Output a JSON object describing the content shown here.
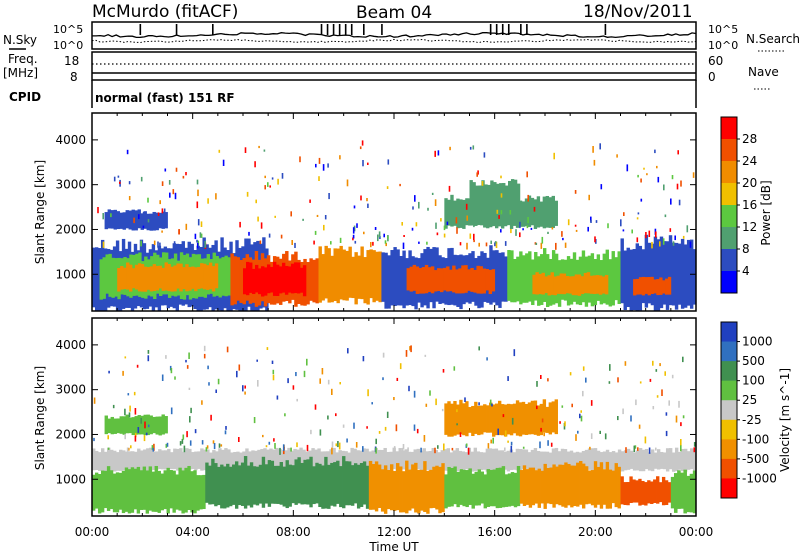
{
  "header": {
    "station": "McMurdo (fitACF)",
    "beam": "Beam 04",
    "date": "18/Nov/2011"
  },
  "panels": {
    "noise": {
      "left_label": "N.Sky",
      "right_label": "N.Search",
      "left_ticks": [
        "10^5",
        "10^0"
      ],
      "right_ticks": [
        "10^5",
        "10^0"
      ]
    },
    "freq": {
      "left_label_line1": "Freq.",
      "left_label_line2": "[MHz]",
      "right_label": "Nave",
      "left_ticks": [
        "18",
        "8"
      ],
      "right_ticks": [
        "60",
        "0"
      ]
    },
    "cpid": {
      "label": "CPID",
      "text": "normal (fast) 151 RF"
    }
  },
  "chart_data": [
    {
      "type": "heatmap",
      "title": "Power",
      "xlabel": "Time UT",
      "ylabel": "Slant Range [km]",
      "x_ticks": [
        "00:00",
        "04:00",
        "08:00",
        "12:00",
        "16:00",
        "20:00",
        "00:00"
      ],
      "xlim_hours": [
        0,
        24
      ],
      "ylim": [
        180,
        4600
      ],
      "y_ticks": [
        1000,
        2000,
        3000,
        4000
      ],
      "colorbar": {
        "label": "Power [dB]",
        "ticks": [
          "4",
          "8",
          "12",
          "16",
          "20",
          "24",
          "28"
        ],
        "levels": [
          {
            "from": 0,
            "to": 4,
            "color": "#0000ff"
          },
          {
            "from": 4,
            "to": 8,
            "color": "#2c4cc0"
          },
          {
            "from": 8,
            "to": 12,
            "color": "#50a070"
          },
          {
            "from": 12,
            "to": 16,
            "color": "#5cc840"
          },
          {
            "from": 16,
            "to": 20,
            "color": "#f0c000"
          },
          {
            "from": 20,
            "to": 24,
            "color": "#f08c00"
          },
          {
            "from": 24,
            "to": 28,
            "color": "#f05000"
          },
          {
            "from": 28,
            "to": 32,
            "color": "#ff0000"
          }
        ]
      },
      "bands": [
        {
          "start": 0.0,
          "end": 7.0,
          "low": 220,
          "high": 1650,
          "power": 7
        },
        {
          "start": 0.3,
          "end": 5.5,
          "low": 500,
          "high": 1400,
          "power": 14
        },
        {
          "start": 1.0,
          "end": 5.0,
          "low": 650,
          "high": 1200,
          "power": 22
        },
        {
          "start": 5.5,
          "end": 9.0,
          "low": 350,
          "high": 1400,
          "power": 27
        },
        {
          "start": 6.0,
          "end": 8.5,
          "low": 550,
          "high": 1200,
          "power": 30
        },
        {
          "start": 9.0,
          "end": 11.5,
          "low": 400,
          "high": 1500,
          "power": 22
        },
        {
          "start": 11.5,
          "end": 16.5,
          "low": 300,
          "high": 1500,
          "power": 7
        },
        {
          "start": 12.5,
          "end": 16.0,
          "low": 600,
          "high": 1150,
          "power": 25
        },
        {
          "start": 16.5,
          "end": 21.0,
          "low": 350,
          "high": 1450,
          "power": 14
        },
        {
          "start": 17.5,
          "end": 20.5,
          "low": 550,
          "high": 1000,
          "power": 22
        },
        {
          "start": 21.0,
          "end": 24.0,
          "low": 250,
          "high": 1700,
          "power": 7
        },
        {
          "start": 21.5,
          "end": 23.0,
          "low": 550,
          "high": 900,
          "power": 26
        },
        {
          "start": 14.0,
          "end": 18.5,
          "low": 2050,
          "high": 2700,
          "power": 9
        },
        {
          "start": 15.0,
          "end": 17.0,
          "low": 2400,
          "high": 3050,
          "power": 8
        },
        {
          "start": 0.5,
          "end": 3.0,
          "low": 2000,
          "high": 2400,
          "power": 6
        }
      ]
    },
    {
      "type": "heatmap",
      "title": "Velocity",
      "xlabel": "Time UT",
      "ylabel": "Slant Range [km]",
      "x_ticks": [
        "00:00",
        "04:00",
        "08:00",
        "12:00",
        "16:00",
        "20:00",
        "00:00"
      ],
      "xlim_hours": [
        0,
        24
      ],
      "ylim": [
        180,
        4600
      ],
      "y_ticks": [
        1000,
        2000,
        3000,
        4000
      ],
      "colorbar": {
        "label": "Velocity [m s^-1]",
        "ticks": [
          "1000",
          "500",
          "100",
          "25",
          "-25",
          "-100",
          "-500",
          "-1000"
        ],
        "levels": [
          {
            "from": 1000,
            "to": 1500,
            "color": "#2040c0"
          },
          {
            "from": 500,
            "to": 1000,
            "color": "#3070c0"
          },
          {
            "from": 100,
            "to": 500,
            "color": "#409050"
          },
          {
            "from": 25,
            "to": 100,
            "color": "#60c040"
          },
          {
            "from": -25,
            "to": 25,
            "color": "#c8c8c8"
          },
          {
            "from": -100,
            "to": -25,
            "color": "#f0c000"
          },
          {
            "from": -500,
            "to": -100,
            "color": "#f09000"
          },
          {
            "from": -1000,
            "to": -500,
            "color": "#f05000"
          },
          {
            "from": -1500,
            "to": -1000,
            "color": "#ff0000"
          }
        ]
      },
      "bands": [
        {
          "start": 0.0,
          "end": 24.0,
          "low": 1200,
          "high": 1650,
          "velocity": 0
        },
        {
          "start": 0.0,
          "end": 4.5,
          "low": 300,
          "high": 1200,
          "velocity": 60
        },
        {
          "start": 4.5,
          "end": 11.0,
          "low": 400,
          "high": 1400,
          "velocity": 300
        },
        {
          "start": 11.0,
          "end": 14.0,
          "low": 300,
          "high": 1300,
          "velocity": -150
        },
        {
          "start": 14.0,
          "end": 17.0,
          "low": 400,
          "high": 1200,
          "velocity": 40
        },
        {
          "start": 17.0,
          "end": 21.0,
          "low": 400,
          "high": 1300,
          "velocity": -300
        },
        {
          "start": 21.0,
          "end": 23.0,
          "low": 450,
          "high": 1000,
          "velocity": -700
        },
        {
          "start": 23.0,
          "end": 24.0,
          "low": 300,
          "high": 1150,
          "velocity": 60
        },
        {
          "start": 14.0,
          "end": 18.5,
          "low": 2000,
          "high": 2700,
          "velocity": -200
        },
        {
          "start": 0.5,
          "end": 3.0,
          "low": 2000,
          "high": 2400,
          "velocity": 60
        }
      ]
    }
  ]
}
